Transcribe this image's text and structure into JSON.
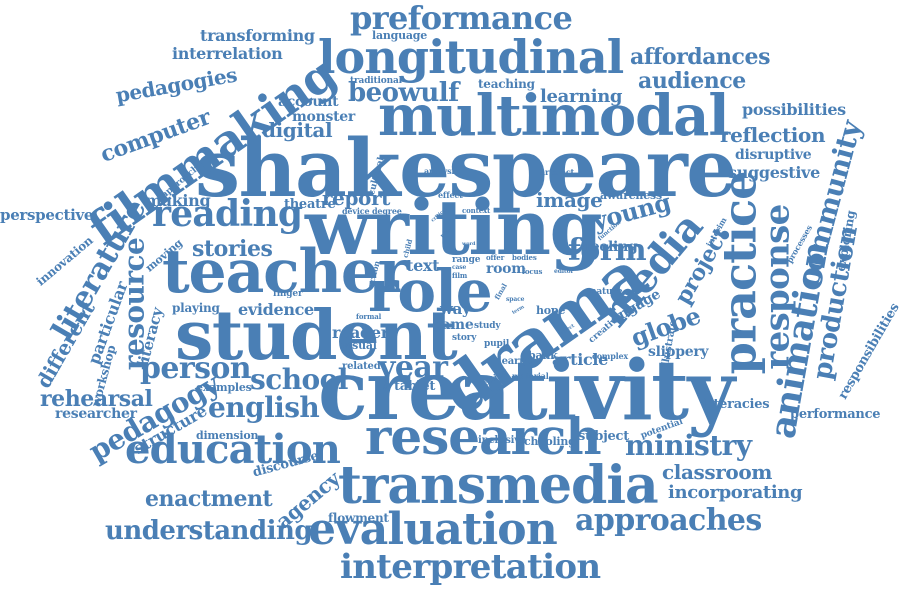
{
  "palette": {
    "word_color": "#4a7fb5",
    "background": "#ffffff"
  },
  "words": [
    {
      "text": "shakespeare",
      "weight": 100,
      "rotation": 0
    },
    {
      "text": "creativity",
      "weight": 88,
      "rotation": 0
    },
    {
      "text": "writing",
      "weight": 80,
      "rotation": 0
    },
    {
      "text": "student",
      "weight": 78,
      "rotation": 0
    },
    {
      "text": "drama",
      "weight": 76,
      "rotation": -35
    },
    {
      "text": "teacher",
      "weight": 72,
      "rotation": 0
    },
    {
      "text": "role",
      "weight": 70,
      "rotation": 0
    },
    {
      "text": "multimodal",
      "weight": 66,
      "rotation": 0
    },
    {
      "text": "transmedia",
      "weight": 62,
      "rotation": 0
    },
    {
      "text": "research",
      "weight": 60,
      "rotation": 0
    },
    {
      "text": "filmmaking",
      "weight": 58,
      "rotation": -35
    },
    {
      "text": "longitudinal",
      "weight": 56,
      "rotation": 0
    },
    {
      "text": "practice",
      "weight": 56,
      "rotation": -90
    },
    {
      "text": "evaluation",
      "weight": 52,
      "rotation": 0
    },
    {
      "text": "education",
      "weight": 50,
      "rotation": 0
    },
    {
      "text": "media",
      "weight": 48,
      "rotation": -50
    },
    {
      "text": "reading",
      "weight": 46,
      "rotation": 0
    },
    {
      "text": "animation",
      "weight": 44,
      "rotation": -80
    },
    {
      "text": "response",
      "weight": 44,
      "rotation": -90
    },
    {
      "text": "interpretation",
      "weight": 42,
      "rotation": 0
    },
    {
      "text": "year",
      "weight": 40,
      "rotation": 0
    },
    {
      "text": "person",
      "weight": 38,
      "rotation": 0
    },
    {
      "text": "literature",
      "weight": 36,
      "rotation": -60
    },
    {
      "text": "approaches",
      "weight": 36,
      "rotation": 0
    },
    {
      "text": "resource",
      "weight": 36,
      "rotation": -90
    },
    {
      "text": "school",
      "weight": 34,
      "rotation": 0
    },
    {
      "text": "english",
      "weight": 34,
      "rotation": 0
    },
    {
      "text": "preformance",
      "weight": 34,
      "rotation": 0
    },
    {
      "text": "form",
      "weight": 34,
      "rotation": 0
    },
    {
      "text": "community",
      "weight": 32,
      "rotation": -75
    },
    {
      "text": "production",
      "weight": 32,
      "rotation": -80
    },
    {
      "text": "pedagogy",
      "weight": 32,
      "rotation": -30
    },
    {
      "text": "ministry",
      "weight": 32,
      "rotation": 0
    },
    {
      "text": "beowulf",
      "weight": 30,
      "rotation": 0
    },
    {
      "text": "understanding",
      "weight": 28,
      "rotation": 0
    },
    {
      "text": "stories",
      "weight": 28,
      "rotation": 0
    },
    {
      "text": "young",
      "weight": 28,
      "rotation": -15
    },
    {
      "text": "globe",
      "weight": 28,
      "rotation": -20
    },
    {
      "text": "project",
      "weight": 28,
      "rotation": -60
    },
    {
      "text": "rehearsal",
      "weight": 26,
      "rotation": 0
    },
    {
      "text": "audience",
      "weight": 26,
      "rotation": 0
    },
    {
      "text": "affordances",
      "weight": 26,
      "rotation": 0
    },
    {
      "text": "computer",
      "weight": 26,
      "rotation": -20
    },
    {
      "text": "enactment",
      "weight": 24,
      "rotation": 0
    },
    {
      "text": "reflection",
      "weight": 24,
      "rotation": 0
    },
    {
      "text": "pedagogies",
      "weight": 24,
      "rotation": -10
    },
    {
      "text": "different",
      "weight": 24,
      "rotation": -60
    },
    {
      "text": "agency",
      "weight": 24,
      "rotation": -40
    },
    {
      "text": "classroom",
      "weight": 22,
      "rotation": 0
    },
    {
      "text": "incorporating",
      "weight": 22,
      "rotation": 0
    },
    {
      "text": "digital",
      "weight": 22,
      "rotation": 0
    },
    {
      "text": "learning",
      "weight": 22,
      "rotation": 0
    },
    {
      "text": "image",
      "weight": 22,
      "rotation": 0
    },
    {
      "text": "report",
      "weight": 22,
      "rotation": 0
    },
    {
      "text": "evidence",
      "weight": 20,
      "rotation": 0
    },
    {
      "text": "reader",
      "weight": 20,
      "rotation": 0
    },
    {
      "text": "article",
      "weight": 20,
      "rotation": 0
    },
    {
      "text": "text",
      "weight": 20,
      "rotation": 0
    },
    {
      "text": "making",
      "weight": 20,
      "rotation": 0
    },
    {
      "text": "particular",
      "weight": 20,
      "rotation": -70
    },
    {
      "text": "literacy",
      "weight": 18,
      "rotation": -75
    },
    {
      "text": "transforming",
      "weight": 18,
      "rotation": 0
    },
    {
      "text": "interrelation",
      "weight": 18,
      "rotation": 0
    },
    {
      "text": "possibilities",
      "weight": 18,
      "rotation": 0
    },
    {
      "text": "suggestive",
      "weight": 18,
      "rotation": 0
    },
    {
      "text": "disruptive",
      "weight": 16,
      "rotation": 0
    },
    {
      "text": "structure",
      "weight": 18,
      "rotation": -30
    },
    {
      "text": "perspective",
      "weight": 16,
      "rotation": 0
    },
    {
      "text": "researcher",
      "weight": 16,
      "rotation": 0
    },
    {
      "text": "performance",
      "weight": 14,
      "rotation": 0
    },
    {
      "text": "responsibilities",
      "weight": 14,
      "rotation": -60
    },
    {
      "text": "exploring",
      "weight": 14,
      "rotation": -80
    },
    {
      "text": "illustrate",
      "weight": 12,
      "rotation": -80
    },
    {
      "text": "literacies",
      "weight": 14,
      "rotation": 0
    },
    {
      "text": "slippery",
      "weight": 16,
      "rotation": 0
    },
    {
      "text": "engage",
      "weight": 16,
      "rotation": -30
    },
    {
      "text": "feeling",
      "weight": 16,
      "rotation": 0
    },
    {
      "text": "account",
      "weight": 16,
      "rotation": 0
    },
    {
      "text": "monster",
      "weight": 16,
      "rotation": 0
    },
    {
      "text": "theatre",
      "weight": 14,
      "rotation": 0
    },
    {
      "text": "workshop",
      "weight": 14,
      "rotation": -75
    },
    {
      "text": "innovation",
      "weight": 14,
      "rotation": -40
    },
    {
      "text": "moving",
      "weight": 14,
      "rotation": -40
    },
    {
      "text": "playing",
      "weight": 14,
      "rotation": 0
    },
    {
      "text": "examples",
      "weight": 12,
      "rotation": 0
    },
    {
      "text": "dimension",
      "weight": 12,
      "rotation": 0
    },
    {
      "text": "discourse",
      "weight": 14,
      "rotation": -15
    },
    {
      "text": "flowment",
      "weight": 14,
      "rotation": 0
    },
    {
      "text": "subject",
      "weight": 14,
      "rotation": 0
    },
    {
      "text": "schooling",
      "weight": 12,
      "rotation": 0
    },
    {
      "text": "inclusive",
      "weight": 12,
      "rotation": 0
    },
    {
      "text": "potential",
      "weight": 10,
      "rotation": -20
    },
    {
      "text": "teaching",
      "weight": 14,
      "rotation": 0
    },
    {
      "text": "language",
      "weight": 12,
      "rotation": 0
    },
    {
      "text": "traditional",
      "weight": 11,
      "rotation": 0
    },
    {
      "text": "awareness",
      "weight": 12,
      "rotation": 0
    },
    {
      "text": "tablet",
      "weight": 14,
      "rotation": 0
    },
    {
      "text": "related",
      "weight": 12,
      "rotation": 0
    },
    {
      "text": "visual",
      "weight": 12,
      "rotation": 0
    },
    {
      "text": "game",
      "weight": 14,
      "rotation": 0
    },
    {
      "text": "way",
      "weight": 16,
      "rotation": 0
    },
    {
      "text": "room",
      "weight": 14,
      "rotation": 0
    },
    {
      "text": "hope",
      "weight": 12,
      "rotation": 0
    },
    {
      "text": "bank",
      "weight": 12,
      "rotation": 0
    },
    {
      "text": "learner",
      "weight": 12,
      "rotation": 0
    },
    {
      "text": "pupil",
      "weight": 10,
      "rotation": 0
    },
    {
      "text": "story",
      "weight": 10,
      "rotation": 0
    },
    {
      "text": "study",
      "weight": 10,
      "rotation": 0
    },
    {
      "text": "range",
      "weight": 10,
      "rotation": 0
    },
    {
      "text": "finger",
      "weight": 10,
      "rotation": 0
    },
    {
      "text": "cultural",
      "weight": 10,
      "rotation": -75
    },
    {
      "text": "approach",
      "weight": 10,
      "rotation": -40
    },
    {
      "text": "analysis",
      "weight": 9,
      "rotation": 0
    },
    {
      "text": "artefact",
      "weight": 9,
      "rotation": 0
    },
    {
      "text": "creative",
      "weight": 10,
      "rotation": -40
    },
    {
      "text": "complex",
      "weight": 9,
      "rotation": 0
    },
    {
      "text": "nature",
      "weight": 10,
      "rotation": 0
    },
    {
      "text": "interim",
      "weight": 9,
      "rotation": -60
    },
    {
      "text": "processes",
      "weight": 9,
      "rotation": -60
    },
    {
      "text": "material",
      "weight": 9,
      "rotation": 0
    },
    {
      "text": "setting",
      "weight": 9,
      "rotation": -30
    },
    {
      "text": "device",
      "weight": 9,
      "rotation": 0
    },
    {
      "text": "degree",
      "weight": 9,
      "rotation": 0
    },
    {
      "text": "context",
      "weight": 8,
      "rotation": 0
    },
    {
      "text": "effect",
      "weight": 9,
      "rotation": 0
    },
    {
      "text": "action",
      "weight": 9,
      "rotation": -75
    },
    {
      "text": "child",
      "weight": 8,
      "rotation": -75
    },
    {
      "text": "formal",
      "weight": 8,
      "rotation": 0
    },
    {
      "text": "offer",
      "weight": 8,
      "rotation": 0
    },
    {
      "text": "bodies",
      "weight": 8,
      "rotation": 0
    },
    {
      "text": "film",
      "weight": 8,
      "rotation": 0
    },
    {
      "text": "focus",
      "weight": 8,
      "rotation": 0
    },
    {
      "text": "editor",
      "weight": 7,
      "rotation": 0
    },
    {
      "text": "function",
      "weight": 7,
      "rotation": -40
    },
    {
      "text": "final",
      "weight": 8,
      "rotation": -60
    },
    {
      "text": "space",
      "weight": 7,
      "rotation": 0
    },
    {
      "text": "case",
      "weight": 7,
      "rotation": 0
    },
    {
      "text": "play",
      "weight": 7,
      "rotation": -40
    },
    {
      "text": "word",
      "weight": 6,
      "rotation": 0
    },
    {
      "text": "critical",
      "weight": 6,
      "rotation": -40
    },
    {
      "text": "library",
      "weight": 6,
      "rotation": -80
    },
    {
      "text": "aspect",
      "weight": 6,
      "rotation": -30
    },
    {
      "text": "term",
      "weight": 6,
      "rotation": -30
    }
  ]
}
